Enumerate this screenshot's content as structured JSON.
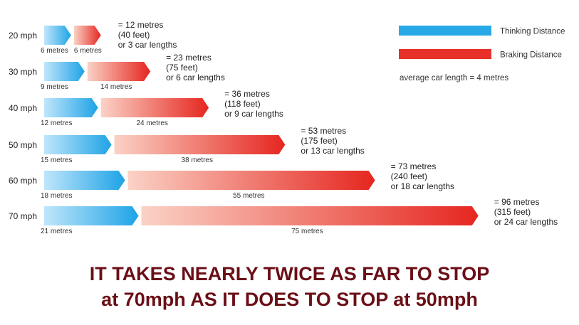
{
  "chart_data": {
    "type": "bar",
    "stacked": true,
    "orientation": "horizontal",
    "categories": [
      "20 mph",
      "30 mph",
      "40 mph",
      "50 mph",
      "60 mph",
      "70 mph"
    ],
    "series": [
      {
        "name": "Thinking Distance",
        "values": [
          6,
          9,
          12,
          15,
          18,
          21
        ],
        "labels": [
          "6 metres",
          "9 metres",
          "12 metres",
          "15 metres",
          "18 metres",
          "21 metres"
        ],
        "color": "#29a8e8"
      },
      {
        "name": "Braking Distance",
        "values": [
          6,
          14,
          24,
          38,
          55,
          75
        ],
        "labels": [
          "6 metres",
          "14 metres",
          "24 metres",
          "38 metres",
          "55 metres",
          "75 metres"
        ],
        "color": "#e8302a"
      }
    ],
    "totals": [
      {
        "metres": "= 12 metres",
        "feet": "(40 feet)",
        "cars": "or 3 car lengths"
      },
      {
        "metres": "= 23 metres",
        "feet": "(75 feet)",
        "cars": "or 6 car lengths"
      },
      {
        "metres": "= 36 metres",
        "feet": "(118 feet)",
        "cars": "or 9 car lengths"
      },
      {
        "metres": "= 53 metres",
        "feet": "(175 feet)",
        "cars": "or 13 car lengths"
      },
      {
        "metres": "= 73 metres",
        "feet": "(240 feet)",
        "cars": "or 18 car lengths"
      },
      {
        "metres": "= 96 metres",
        "feet": "(315 feet)",
        "cars": "or 24 car lengths"
      }
    ],
    "legend_note": "average car length = 4 metres",
    "legend_position": "top-right",
    "grid": false
  },
  "headline": {
    "line1": "IT TAKES NEARLY TWICE AS FAR TO STOP",
    "line2": "at 70mph AS IT DOES TO STOP at 50mph"
  }
}
